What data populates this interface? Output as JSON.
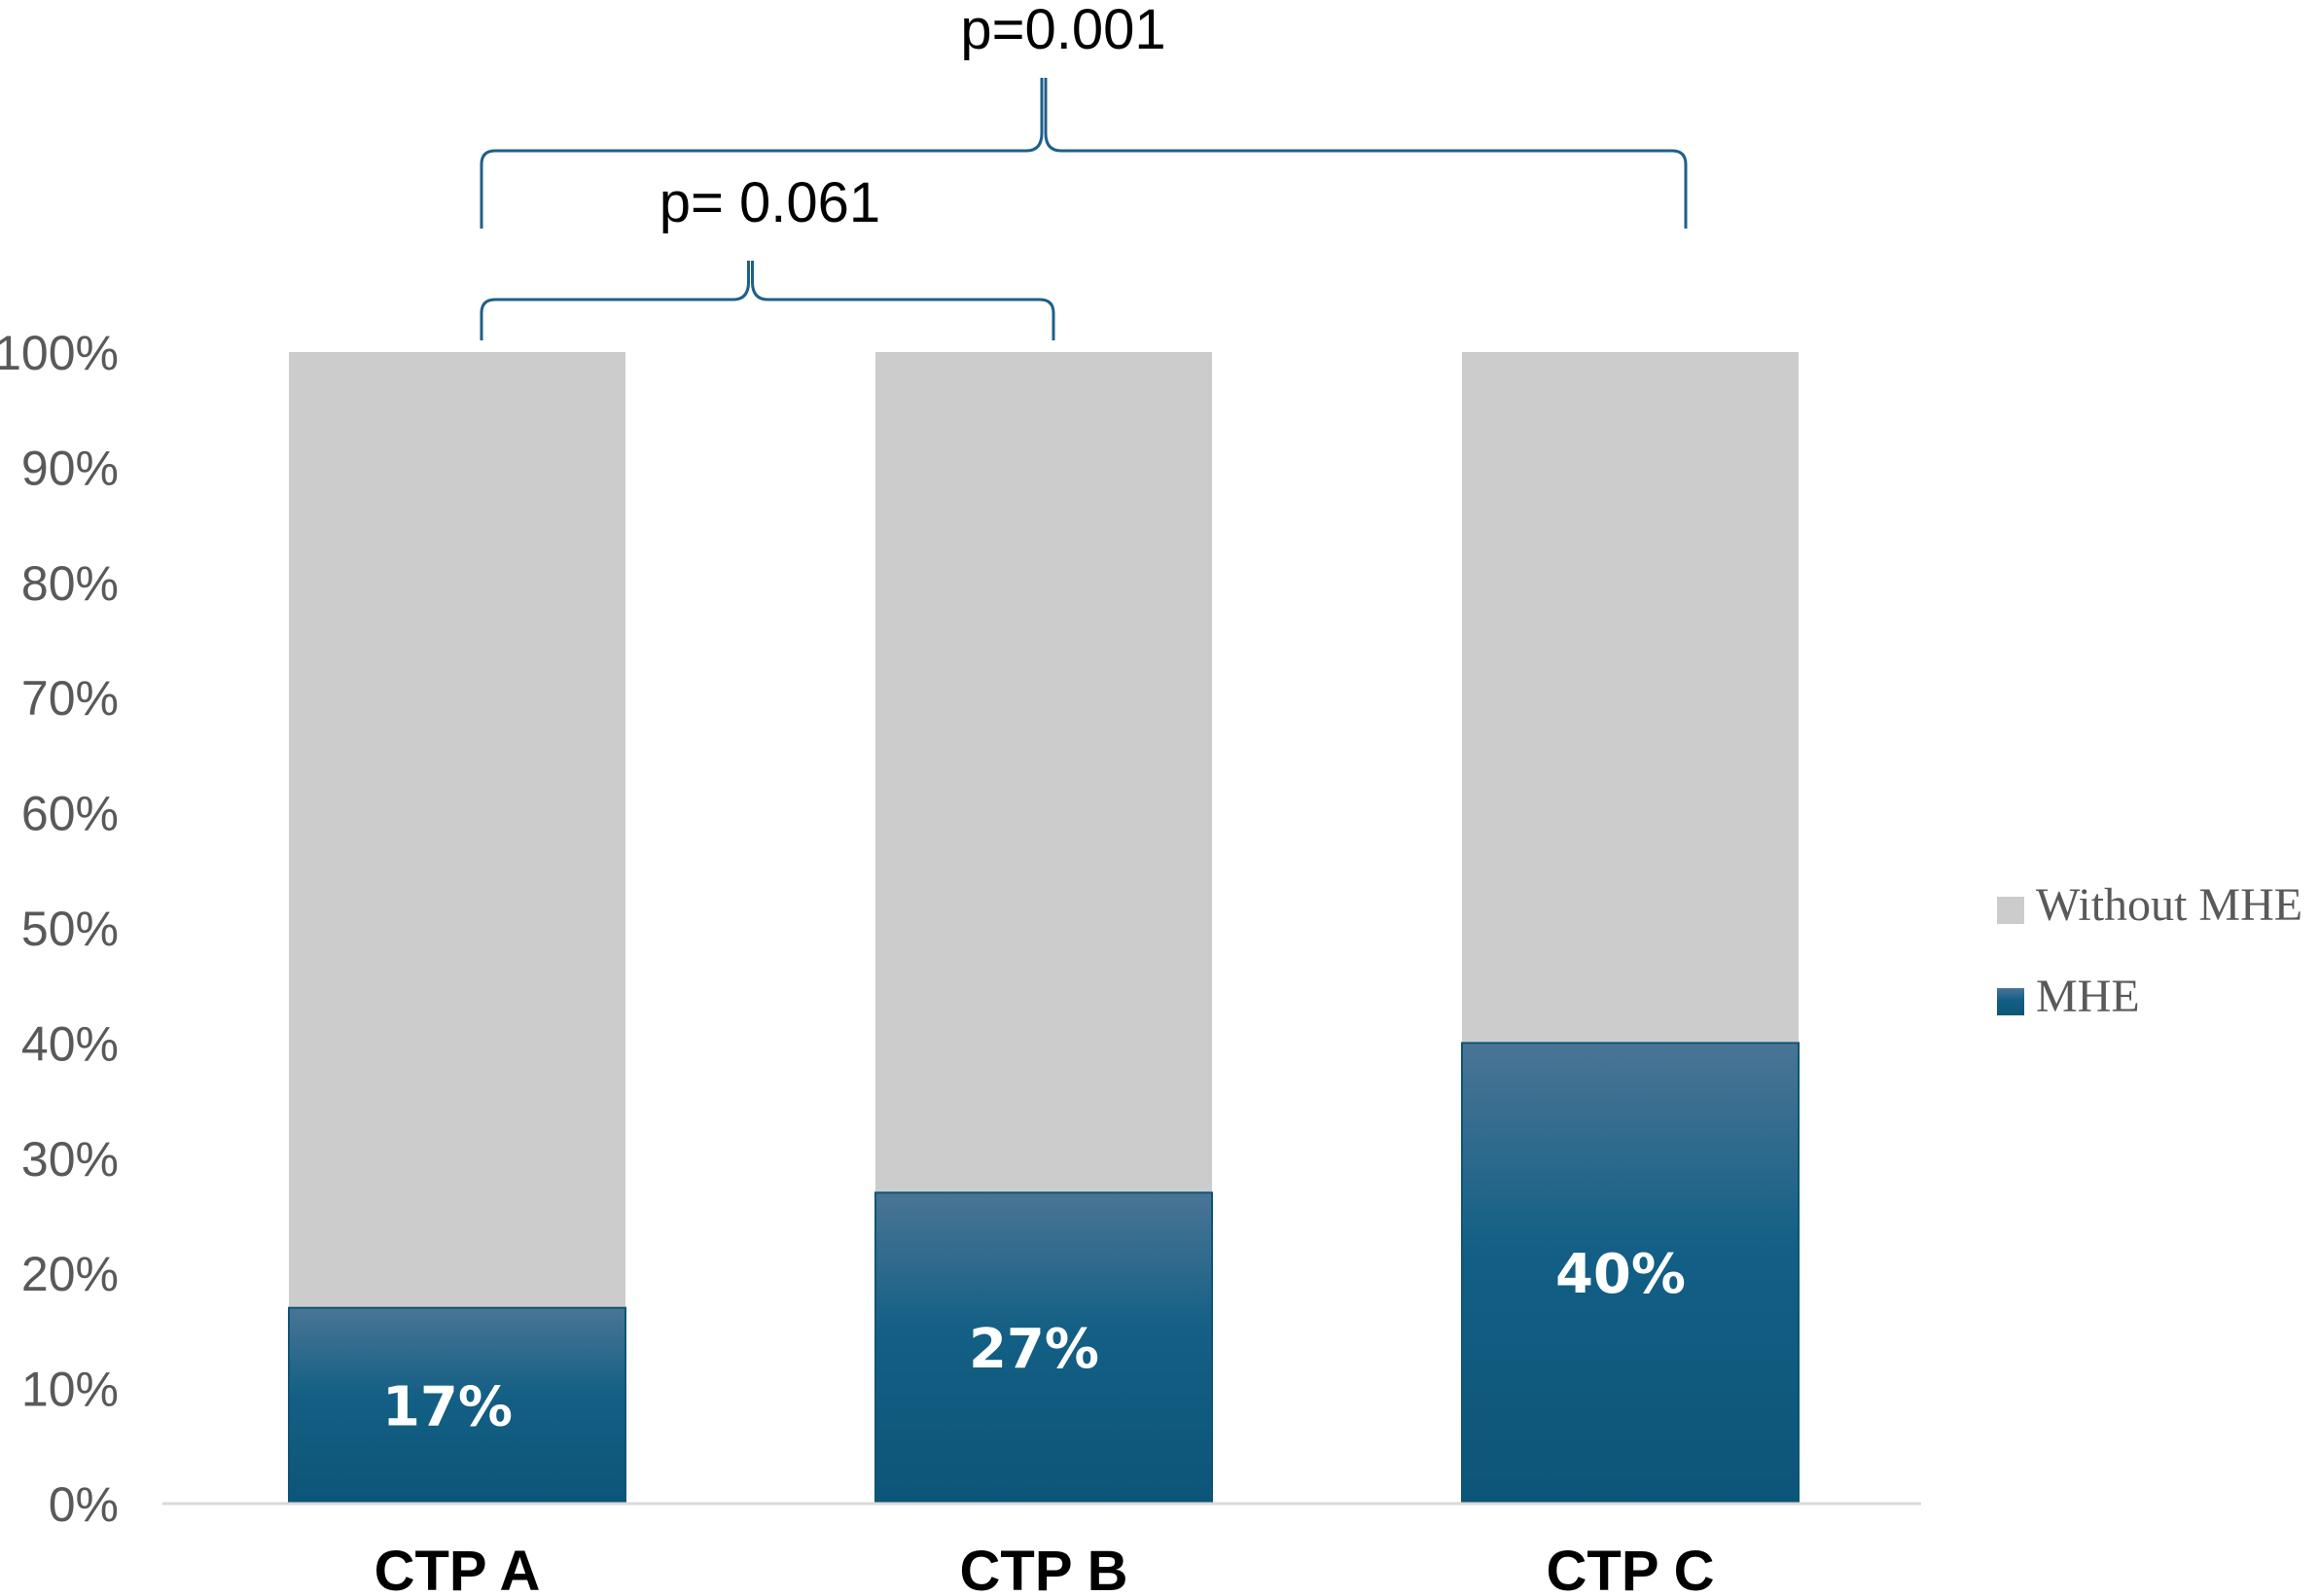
{
  "chart_data": {
    "type": "bar",
    "stacked": true,
    "percent_stacked": true,
    "categories": [
      "CTP A",
      "CTP B",
      "CTP C"
    ],
    "series": [
      {
        "name": "MHE",
        "values": [
          17,
          27,
          40
        ],
        "color": "#0f5a80",
        "data_labels": [
          "17%",
          "27%",
          "40%"
        ]
      },
      {
        "name": "Without MHE",
        "values": [
          83,
          73,
          60
        ],
        "color": "#cccccc"
      }
    ],
    "ylim": [
      0,
      100
    ],
    "yticks": [
      "0%",
      "10%",
      "20%",
      "30%",
      "40%",
      "50%",
      "60%",
      "70%",
      "80%",
      "90%",
      "100%"
    ],
    "xlabel": "",
    "ylabel": "",
    "grid": false,
    "legend_position": "right",
    "legend_order": [
      "Without MHE",
      "MHE"
    ],
    "annotations": [
      {
        "text": "p=0.001",
        "from": "CTP A",
        "to": "CTP C",
        "level": 2
      },
      {
        "text": "p= 0.061",
        "from": "CTP A",
        "to": "CTP B",
        "level": 1
      }
    ],
    "bracket_color": "#1f5f8a"
  }
}
